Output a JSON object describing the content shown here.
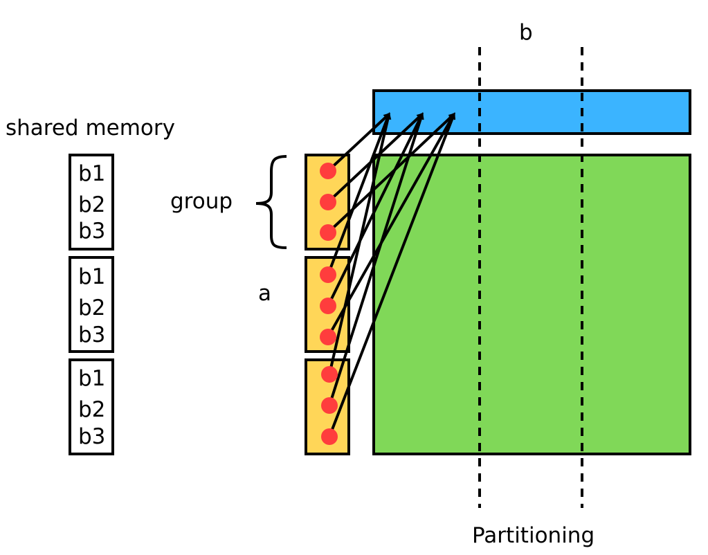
{
  "labels": {
    "shared_memory": "shared memory",
    "group": "group",
    "a": "a",
    "b": "b",
    "partitioning": "Partitioning"
  },
  "shared_memory_blocks": [
    {
      "items": [
        "b1",
        "b2",
        "b3"
      ]
    },
    {
      "items": [
        "b1",
        "b2",
        "b3"
      ]
    },
    {
      "items": [
        "b1",
        "b2",
        "b3"
      ]
    }
  ],
  "colors": {
    "b_bar": "#3bb4ff",
    "matrix": "#80d858",
    "a_block": "#ffd658",
    "thread_dot": "#ff3d3d",
    "outline": "#000000"
  },
  "a_groups": 3,
  "threads_per_group": 3,
  "partition_lines": 2
}
